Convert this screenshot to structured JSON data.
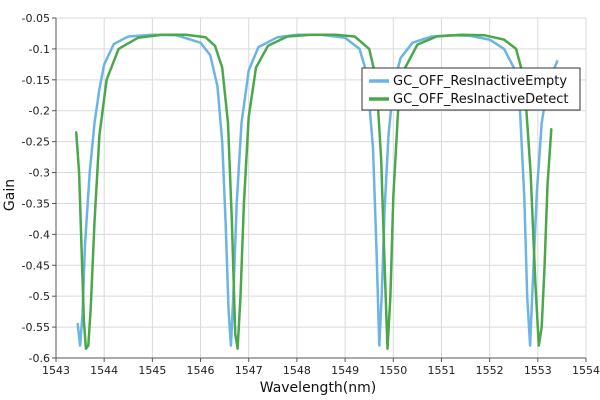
{
  "chart_data": {
    "type": "line",
    "title": "",
    "xlabel": "Wavelength(nm)",
    "ylabel": "Gain",
    "xlim": [
      1543,
      1554
    ],
    "ylim": [
      -0.6,
      -0.05
    ],
    "x_ticks": [
      1543,
      1544,
      1545,
      1546,
      1547,
      1548,
      1549,
      1550,
      1551,
      1552,
      1553,
      1554
    ],
    "y_ticks": [
      -0.05,
      -0.1,
      -0.15,
      -0.2,
      -0.25,
      -0.3,
      -0.35,
      -0.4,
      -0.45,
      -0.5,
      -0.55,
      -0.6
    ],
    "grid": true,
    "legend_position": "top-right",
    "series": [
      {
        "name": "GC_OFF_ResInactiveEmpty",
        "color": "#6cb4e4",
        "x": [
          1543.45,
          1543.5,
          1543.55,
          1543.6,
          1543.7,
          1543.8,
          1543.9,
          1544.0,
          1544.2,
          1544.5,
          1545.0,
          1545.5,
          1546.0,
          1546.2,
          1546.35,
          1546.45,
          1546.52,
          1546.58,
          1546.63,
          1546.68,
          1546.75,
          1546.85,
          1547.0,
          1547.2,
          1547.6,
          1548.0,
          1548.5,
          1549.0,
          1549.3,
          1549.45,
          1549.58,
          1549.65,
          1549.71,
          1549.76,
          1549.82,
          1549.9,
          1550.0,
          1550.15,
          1550.4,
          1550.8,
          1551.2,
          1551.6,
          1552.0,
          1552.3,
          1552.5,
          1552.63,
          1552.72,
          1552.78,
          1552.84,
          1552.9,
          1552.98,
          1553.08,
          1553.2,
          1553.3,
          1553.4
        ],
        "y": [
          -0.545,
          -0.58,
          -0.53,
          -0.42,
          -0.3,
          -0.22,
          -0.165,
          -0.125,
          -0.092,
          -0.08,
          -0.077,
          -0.078,
          -0.09,
          -0.11,
          -0.16,
          -0.25,
          -0.38,
          -0.52,
          -0.58,
          -0.5,
          -0.35,
          -0.22,
          -0.135,
          -0.097,
          -0.081,
          -0.077,
          -0.077,
          -0.082,
          -0.1,
          -0.14,
          -0.26,
          -0.42,
          -0.58,
          -0.5,
          -0.36,
          -0.24,
          -0.16,
          -0.115,
          -0.09,
          -0.08,
          -0.078,
          -0.079,
          -0.085,
          -0.1,
          -0.13,
          -0.2,
          -0.34,
          -0.5,
          -0.58,
          -0.47,
          -0.33,
          -0.22,
          -0.16,
          -0.14,
          -0.12
        ]
      },
      {
        "name": "GC_OFF_ResInactiveDetect",
        "color": "#4aa84a",
        "x": [
          1543.42,
          1543.48,
          1543.53,
          1543.58,
          1543.62,
          1543.67,
          1543.72,
          1543.8,
          1543.9,
          1544.05,
          1544.3,
          1544.7,
          1545.2,
          1545.7,
          1546.1,
          1546.3,
          1546.45,
          1546.57,
          1546.65,
          1546.72,
          1546.77,
          1546.83,
          1546.9,
          1547.0,
          1547.15,
          1547.4,
          1547.8,
          1548.3,
          1548.8,
          1549.2,
          1549.5,
          1549.65,
          1549.75,
          1549.82,
          1549.88,
          1549.94,
          1550.0,
          1550.1,
          1550.25,
          1550.5,
          1550.9,
          1551.4,
          1551.9,
          1552.3,
          1552.55,
          1552.72,
          1552.85,
          1552.95,
          1553.02,
          1553.08,
          1553.14,
          1553.2,
          1553.28
        ],
        "y": [
          -0.235,
          -0.3,
          -0.42,
          -0.54,
          -0.585,
          -0.58,
          -0.52,
          -0.38,
          -0.24,
          -0.15,
          -0.1,
          -0.082,
          -0.077,
          -0.077,
          -0.081,
          -0.095,
          -0.13,
          -0.22,
          -0.38,
          -0.56,
          -0.585,
          -0.5,
          -0.35,
          -0.21,
          -0.13,
          -0.095,
          -0.08,
          -0.077,
          -0.077,
          -0.08,
          -0.1,
          -0.15,
          -0.28,
          -0.45,
          -0.585,
          -0.5,
          -0.34,
          -0.2,
          -0.13,
          -0.093,
          -0.08,
          -0.077,
          -0.078,
          -0.085,
          -0.1,
          -0.15,
          -0.3,
          -0.48,
          -0.58,
          -0.55,
          -0.45,
          -0.32,
          -0.23
        ]
      }
    ]
  }
}
